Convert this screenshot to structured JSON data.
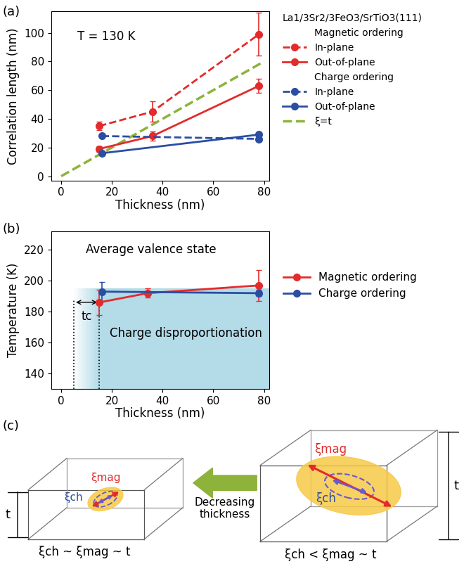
{
  "chart_data": [
    {
      "type": "line",
      "panel": "(a)",
      "legend_title": "La1/3Sr2/3FeO3/SrTiO3(111)",
      "annotation": "T = 130 K",
      "x_label": "Thickness (nm)",
      "y_label": "Correlation length (nm)",
      "xlim": [
        -4,
        82
      ],
      "xticks": [
        0,
        20,
        40,
        60,
        80
      ],
      "ylim": [
        -3,
        115
      ],
      "yticks": [
        0,
        20,
        40,
        60,
        80,
        100
      ],
      "legend": "upper left",
      "series": [
        {
          "group": "Magnetic ordering",
          "name": "In-plane",
          "color": "#e32b2b",
          "line_style": "dashed",
          "marker": "o",
          "x": [
            15,
            36,
            78
          ],
          "values": [
            35,
            45,
            99
          ],
          "errors": [
            3,
            7,
            15
          ]
        },
        {
          "group": "Magnetic ordering",
          "name": "Out-of-plane",
          "color": "#e32b2b",
          "line_style": "solid",
          "marker": "o",
          "x": [
            15,
            36,
            78
          ],
          "values": [
            19,
            28,
            63
          ],
          "errors": [
            2,
            3,
            5
          ]
        },
        {
          "group": "Charge ordering",
          "name": "In-plane",
          "color": "#2b4ea2",
          "line_style": "dashed",
          "marker": "o",
          "x": [
            16,
            78
          ],
          "values": [
            28,
            26
          ],
          "errors": [
            1,
            1
          ]
        },
        {
          "group": "Charge ordering",
          "name": "Out-of-plane",
          "color": "#2b4ea2",
          "line_style": "solid",
          "marker": "o",
          "x": [
            16,
            78
          ],
          "values": [
            16,
            29
          ],
          "errors": [
            1,
            1
          ]
        },
        {
          "name": "ξ=t",
          "color": "#8db33a",
          "line_style": "dashed",
          "marker": "none",
          "x": [
            0,
            80
          ],
          "values": [
            0,
            80
          ]
        }
      ]
    },
    {
      "type": "line",
      "panel": "(b)",
      "x_label": "Thickness (nm)",
      "y_label": "Temperature (K)",
      "xlim": [
        -4,
        82
      ],
      "xticks": [
        0,
        20,
        40,
        60,
        80
      ],
      "ylim": [
        130,
        232
      ],
      "yticks": [
        140,
        160,
        180,
        200,
        220
      ],
      "legend": "upper left",
      "region_label": "Average valence state",
      "shaded": {
        "label": "Charge disproportionation",
        "x": [
          5,
          15
        ],
        "top": 195,
        "color": "#b3dbe8"
      },
      "critical_thickness": {
        "label": "tc",
        "x": [
          5,
          15
        ]
      },
      "series": [
        {
          "name": "Magnetic ordering",
          "color": "#e32b2b",
          "line_style": "solid",
          "marker": "o",
          "x": [
            15,
            34,
            78
          ],
          "values": [
            186,
            192,
            197
          ],
          "errors": [
            8,
            3,
            10
          ]
        },
        {
          "name": "Charge ordering",
          "color": "#2b4ea2",
          "line_style": "solid",
          "marker": "o",
          "x": [
            16,
            78
          ],
          "values": [
            193,
            192
          ],
          "errors": [
            6,
            2
          ]
        }
      ]
    }
  ],
  "diagram": {
    "panel": "(c)",
    "labels": {
      "xi_mag": "ξmag",
      "xi_ch": "ξch",
      "t": "t"
    },
    "arrow_label": "Decreasing\nthickness",
    "captions": [
      "ξch ~ ξmag ~ t",
      "ξch < ξmag ~ t"
    ]
  }
}
